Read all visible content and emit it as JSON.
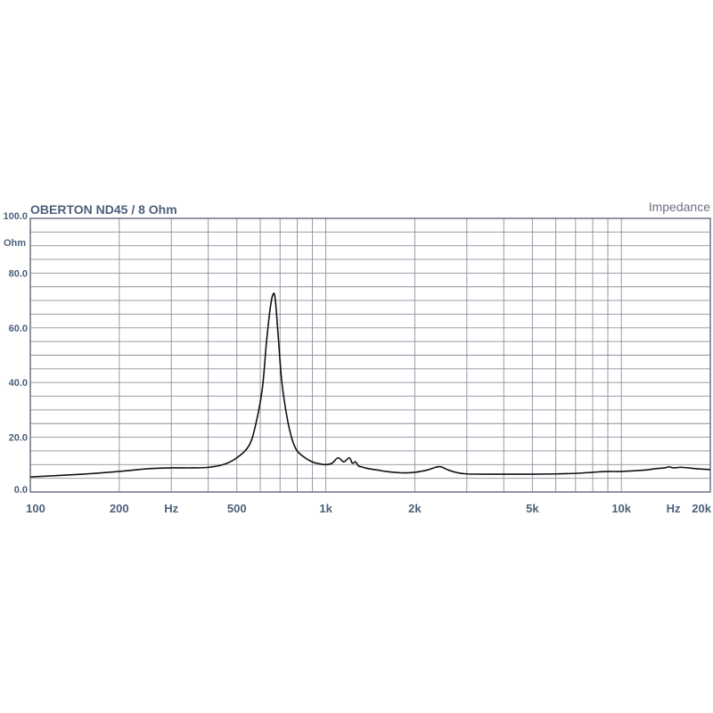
{
  "chart_data": {
    "type": "line",
    "title": "OBERTON  ND45 / 8  Ohm",
    "subtitle": "Impedance",
    "xscale": "log",
    "xlim": [
      100,
      20000
    ],
    "ylim": [
      0,
      100
    ],
    "grid": true,
    "y_unit_label": "Ohm",
    "y_ticks": [
      {
        "value": 100,
        "label": "100.0"
      },
      {
        "value": 80,
        "label": "80.0"
      },
      {
        "value": 60,
        "label": "60.0"
      },
      {
        "value": 40,
        "label": "40.0"
      },
      {
        "value": 20,
        "label": "20.0"
      },
      {
        "value": 0,
        "label": "0.0"
      }
    ],
    "x_tick_labels": [
      {
        "value": 100,
        "label": "100"
      },
      {
        "value": 200,
        "label": "200"
      },
      {
        "value": 300,
        "label": "Hz"
      },
      {
        "value": 500,
        "label": "500"
      },
      {
        "value": 1000,
        "label": "1k"
      },
      {
        "value": 2000,
        "label": "2k"
      },
      {
        "value": 5000,
        "label": "5k"
      },
      {
        "value": 10000,
        "label": "10k"
      },
      {
        "value": 15000,
        "label": "Hz"
      },
      {
        "value": 20000,
        "label": "20k"
      }
    ],
    "series": [
      {
        "x": [
          100,
          150,
          200,
          250,
          300,
          350,
          400,
          450,
          500,
          550,
          580,
          610,
          630,
          650,
          665,
          675,
          690,
          710,
          740,
          770,
          800,
          850,
          900,
          950,
          1000,
          1050,
          1100,
          1150,
          1200,
          1230,
          1260,
          1290,
          1320,
          1360,
          1400,
          1500,
          1600,
          1800,
          2000,
          2200,
          2350,
          2450,
          2600,
          2800,
          3000,
          3500,
          4000,
          5000,
          6000,
          7000,
          8000,
          9000,
          10000,
          12000,
          13000,
          14000,
          14500,
          15000,
          16000,
          18000,
          20000
        ],
        "y": [
          5.5,
          6.5,
          7.5,
          8.5,
          8.8,
          8.8,
          9.0,
          10.0,
          12.5,
          17.0,
          25.0,
          38.0,
          55.0,
          68.0,
          72.5,
          70.0,
          57.0,
          40.0,
          27.0,
          19.0,
          15.0,
          12.5,
          11.0,
          10.3,
          10.0,
          10.5,
          12.5,
          11.0,
          12.5,
          10.5,
          11.0,
          9.5,
          9.2,
          8.8,
          8.5,
          8.0,
          7.5,
          7.0,
          7.2,
          8.0,
          9.0,
          9.2,
          8.0,
          7.0,
          6.6,
          6.5,
          6.5,
          6.5,
          6.6,
          6.8,
          7.2,
          7.5,
          7.5,
          8.0,
          8.5,
          8.8,
          9.2,
          8.8,
          9.0,
          8.5,
          8.2
        ]
      }
    ]
  }
}
